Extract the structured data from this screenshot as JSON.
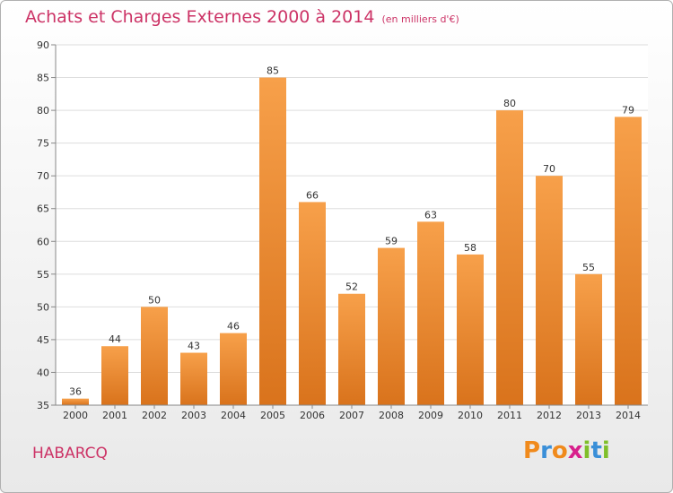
{
  "header": {
    "title": "Achats et Charges Externes 2000 à 2014",
    "unit": "(en milliers d'€)"
  },
  "footer": {
    "commune": "HABARCQ",
    "logo_letters": [
      "P",
      "r",
      "o",
      "x",
      "i",
      "t",
      "i"
    ],
    "logo_colors": [
      "#f08a1c",
      "#3a8fd8",
      "#f08a1c",
      "#d8208c",
      "#7fbf2a",
      "#3a8fd8",
      "#7fbf2a"
    ]
  },
  "chart_data": {
    "type": "bar",
    "categories": [
      "2000",
      "2001",
      "2002",
      "2003",
      "2004",
      "2005",
      "2006",
      "2007",
      "2008",
      "2009",
      "2010",
      "2011",
      "2012",
      "2013",
      "2014"
    ],
    "values": [
      36,
      44,
      50,
      43,
      46,
      85,
      66,
      52,
      59,
      63,
      58,
      80,
      70,
      55,
      79
    ],
    "ylim": [
      35,
      90
    ],
    "yticks": [
      35,
      40,
      45,
      50,
      55,
      60,
      65,
      70,
      75,
      80,
      85,
      90
    ],
    "grid": true,
    "bar_color_top": "#f7a04a",
    "bar_color_bottom": "#d9731c"
  }
}
